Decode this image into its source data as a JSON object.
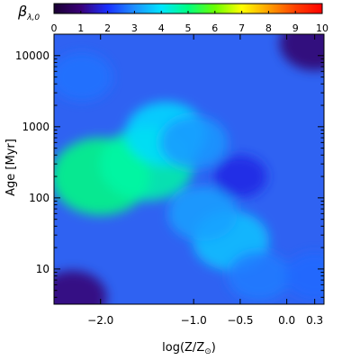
{
  "chart_data": {
    "type": "heatmap",
    "colorbar": {
      "label": "β",
      "label_sub": "λ,0",
      "range": [
        0,
        10
      ],
      "ticks": [
        "0",
        "1",
        "2",
        "3",
        "4",
        "5",
        "6",
        "7",
        "8",
        "9",
        "10"
      ],
      "colors": [
        "#1a0033",
        "#3a0078",
        "#1a30ff",
        "#1e90ff",
        "#00e5ff",
        "#00ff80",
        "#6aff00",
        "#ffff00",
        "#ffa000",
        "#ff4000",
        "#ff0000"
      ]
    },
    "xaxis": {
      "label_main": "log(Z/Z",
      "label_sub": "⊙",
      "label_close": ")",
      "range": [
        -2.5,
        0.4
      ],
      "ticks": [
        {
          "value": -2.0,
          "label": "−2.0"
        },
        {
          "value": -1.0,
          "label": "−1.0"
        },
        {
          "value": -0.5,
          "label": "−0.5"
        },
        {
          "value": 0.0,
          "label": "0.0"
        },
        {
          "value": 0.3,
          "label": "0.3"
        }
      ]
    },
    "yaxis": {
      "label": "Age [Myr]",
      "scale": "log",
      "range": [
        3.2,
        20000
      ],
      "ticks": [
        {
          "value": 10,
          "label": "10"
        },
        {
          "value": 100,
          "label": "100"
        },
        {
          "value": 1000,
          "label": "1000"
        },
        {
          "value": 10000,
          "label": "10000"
        }
      ]
    },
    "features": [
      {
        "logZ": -2.0,
        "age": 200,
        "value": 5.0
      },
      {
        "logZ": -1.5,
        "age": 300,
        "value": 4.7
      },
      {
        "logZ": -1.3,
        "age": 800,
        "value": 3.9
      },
      {
        "logZ": -1.0,
        "age": 600,
        "value": 3.1
      },
      {
        "logZ": -0.6,
        "age": 25,
        "value": 3.6
      },
      {
        "logZ": -0.9,
        "age": 60,
        "value": 3.2
      },
      {
        "logZ": -2.2,
        "age": 5000,
        "value": 2.7
      },
      {
        "logZ": -0.3,
        "age": 8,
        "value": 2.8
      },
      {
        "logZ": 0.3,
        "age": 8,
        "value": 2.6
      },
      {
        "logZ": 0.3,
        "age": 15000,
        "value": 0.8
      },
      {
        "logZ": -2.3,
        "age": 4,
        "value": 0.9
      },
      {
        "logZ": -0.5,
        "age": 200,
        "value": 1.8
      }
    ]
  }
}
